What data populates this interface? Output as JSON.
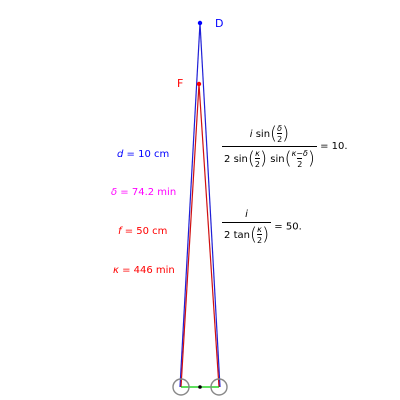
{
  "points": {
    "D": {
      "label": "D",
      "color": "#0000ff"
    },
    "F": {
      "label": "F",
      "color": "#ff0000"
    }
  },
  "parameters": [
    {
      "symbol": "d",
      "value_text": " = 10 cm",
      "color": "#0000ff"
    },
    {
      "symbol": "δ",
      "value_text": " = 74.2 min",
      "color": "#ff00ff"
    },
    {
      "symbol": "f",
      "value_text": " = 50 cm",
      "color": "#ff0000"
    },
    {
      "symbol": "κ",
      "value_text": " = 446 min",
      "color": "#ff0000"
    }
  ],
  "formula1": {
    "num_prefix": "i",
    "num_fn": "sin",
    "num_arg_top": "δ",
    "num_arg_bottom": "2",
    "den_coef": "2",
    "den_fn1": "sin",
    "den_arg1_top": "κ",
    "den_arg1_bottom": "2",
    "den_fn2": "sin",
    "den_arg2_top": "κ−δ",
    "den_arg2_bottom": "2",
    "result": "= 10."
  },
  "formula2": {
    "num": "i",
    "den_coef": "2",
    "den_fn": "tan",
    "den_arg_top": "κ",
    "den_arg_bottom": "2",
    "result": "= 50."
  },
  "colors": {
    "blue_lines": "#1f1fd6",
    "red_lines": "#d01010",
    "green_base": "#00cc00",
    "circles": "#888888"
  }
}
